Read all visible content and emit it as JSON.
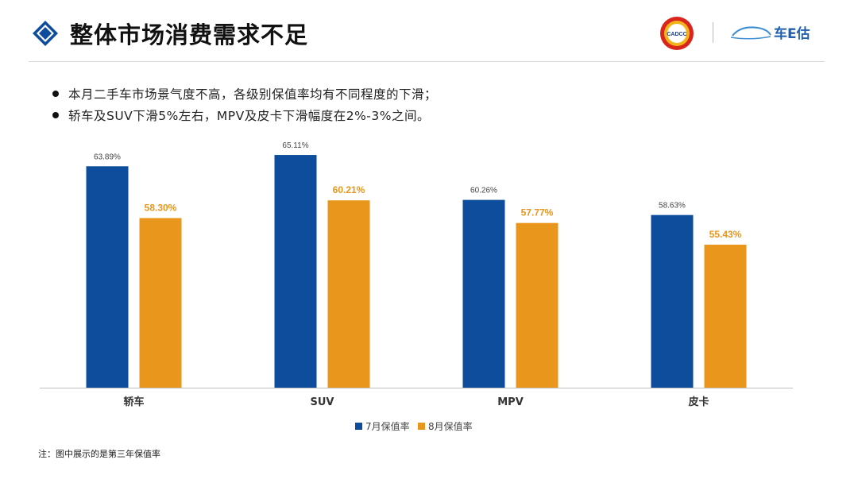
{
  "page": {
    "title": "整体市场消费需求不足"
  },
  "logos": {
    "left": "CADCC",
    "right": "车E估"
  },
  "bullets": [
    "本月二手车市场景气度不高，各级别保值率均有不同程度的下滑；",
    "轿车及SUV下滑5%左右，MPV及皮卡下滑幅度在2%-3%之间。"
  ],
  "chart_data": {
    "type": "bar",
    "categories": [
      "轿车",
      "SUV",
      "MPV",
      "皮卡"
    ],
    "series": [
      {
        "name": "7月保值率",
        "values": [
          63.89,
          65.11,
          60.26,
          58.63
        ],
        "labels": [
          "63.89%",
          "65.11%",
          "60.26%",
          "58.63%"
        ],
        "color": "#0d4d9b"
      },
      {
        "name": "8月保值率",
        "values": [
          58.3,
          60.21,
          57.77,
          55.43
        ],
        "labels": [
          "58.30%",
          "60.21%",
          "57.77%",
          "55.43%"
        ],
        "color": "#e8961c"
      }
    ],
    "ylim": [
      40,
      67
    ],
    "grid": false,
    "legend": "bottom-center"
  },
  "footnote": "注：图中展示的是第三年保值率",
  "colors": {
    "primary": "#0d4d9b",
    "accent": "#e8961c"
  }
}
